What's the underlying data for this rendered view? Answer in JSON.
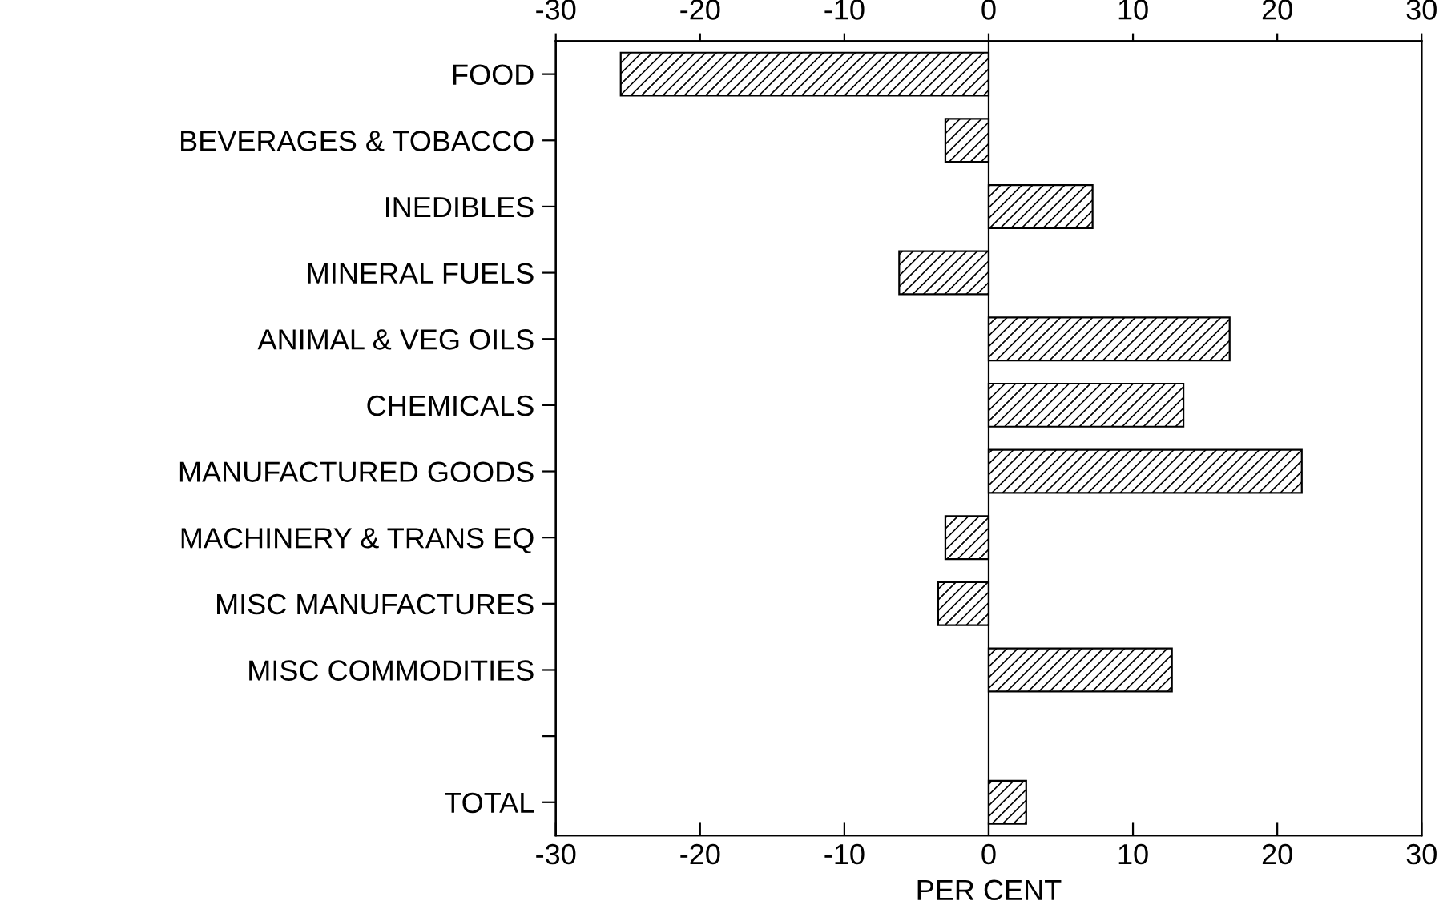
{
  "chart_data": {
    "type": "bar",
    "orientation": "horizontal",
    "xlabel": "PER CENT",
    "categories": [
      "FOOD",
      "BEVERAGES & TOBACCO",
      "INEDIBLES",
      "MINERAL FUELS",
      "ANIMAL & VEG OILS",
      "CHEMICALS",
      "MANUFACTURED GOODS",
      "MACHINERY & TRANS EQ",
      "MISC MANUFACTURES",
      "MISC COMMODITIES",
      null,
      "TOTAL"
    ],
    "values": [
      -25.5,
      -3.0,
      7.2,
      -6.2,
      16.7,
      13.5,
      21.7,
      -3.0,
      -3.5,
      12.7,
      null,
      2.6
    ],
    "color": "#000000",
    "xlim": [
      -30,
      30
    ],
    "xticks": [
      -30,
      -20,
      -10,
      0,
      10,
      20,
      30
    ],
    "x2lim": [
      -30,
      30
    ],
    "x2ticks": [
      -30,
      -20,
      -10,
      0,
      10,
      20,
      30
    ],
    "ref_lines": [
      {
        "axis": "x",
        "value": 0
      }
    ],
    "grid": false,
    "legend": false
  }
}
